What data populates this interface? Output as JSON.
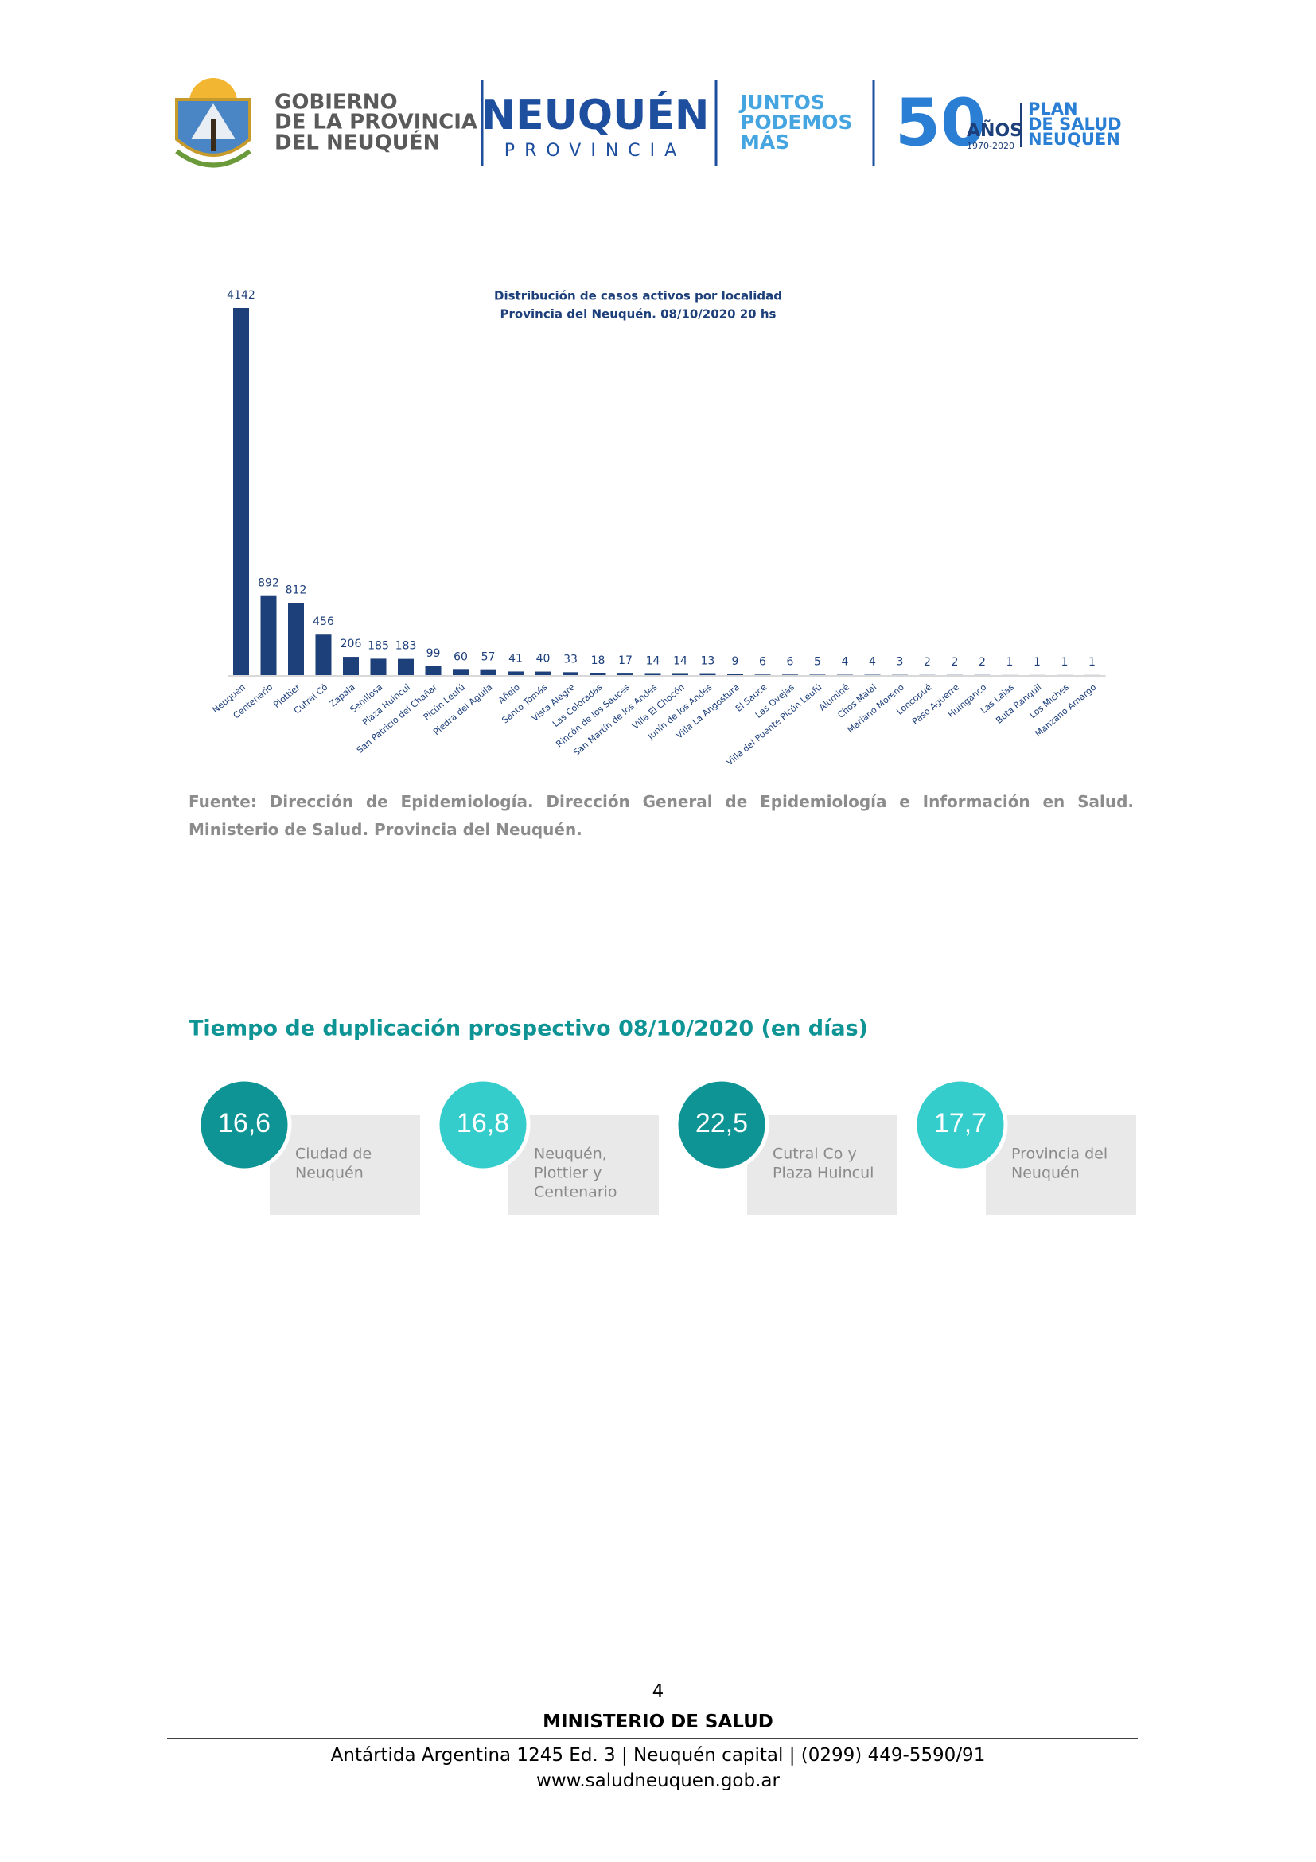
{
  "header": {
    "gov": [
      "GOBIERNO",
      "DE LA PROVINCIA",
      "DEL NEUQUÉN"
    ],
    "brand": "NEUQUÉN",
    "brand_sub": "PROVINCIA",
    "slogan": [
      "JUNTOS",
      "PODEMOS",
      "MÁS"
    ],
    "anniv": "50",
    "anniv_word": "AÑOS",
    "anniv_years": "1970-2020",
    "plan": [
      "PLAN",
      "DE SALUD",
      "NEUQUÉN"
    ]
  },
  "chart_data": {
    "type": "bar",
    "title": [
      "Distribución de casos activos por localidad",
      "Provincia del Neuquén.  08/10/2020 20 hs"
    ],
    "color": "#1d3f7a",
    "categories": [
      "Neuquén",
      "Centenario",
      "Plottier",
      "Cutral Có",
      "Zapala",
      "Senillosa",
      "Plaza Huincul",
      "San Patricio del Chañar",
      "Picún Leufú",
      "Piedra del Aguila",
      "Añelo",
      "Santo Tomás",
      "Vista Alegre",
      "Las Coloradas",
      "Rincón de los Sauces",
      "San Martín de los Andes",
      "Villa El Chocón",
      "Junín de los Andes",
      "Villa La Angostura",
      "El Sauce",
      "Las Ovejas",
      "Villa del Puente Picún Leufú",
      "Aluminé",
      "Chos Malal",
      "Mariano Moreno",
      "Loncopué",
      "Paso Aguerre",
      "Huinganco",
      "Las Lajas",
      "Buta Ranquil",
      "Los Miches",
      "Manzano Amargo"
    ],
    "values": [
      4142,
      892,
      812,
      456,
      206,
      185,
      183,
      99,
      60,
      57,
      41,
      40,
      33,
      18,
      17,
      14,
      14,
      13,
      9,
      6,
      6,
      5,
      4,
      4,
      3,
      2,
      2,
      2,
      1,
      1,
      1,
      1
    ]
  },
  "source": "Fuente: Dirección de Epidemiología. Dirección General de Epidemiología e Información en Salud. Ministerio de Salud. Provincia del Neuquén.",
  "section_title": "Tiempo de duplicación prospectivo 08/10/2020 (en días)",
  "cards": [
    {
      "value": "16,6",
      "label": [
        "Ciudad de",
        "Neuquén"
      ],
      "color": "#0e9494"
    },
    {
      "value": "16,8",
      "label": [
        "Neuquén,",
        "Plottier y",
        "Centenario"
      ],
      "color": "#35cccc"
    },
    {
      "value": "22,5",
      "label": [
        "Cutral Co y",
        "Plaza Huincul"
      ],
      "color": "#0e9494"
    },
    {
      "value": "17,7",
      "label": [
        "Provincia del",
        "Neuquén"
      ],
      "color": "#35cccc"
    }
  ],
  "footer": {
    "page": "4",
    "ministry": "MINISTERIO DE SALUD",
    "address": "Antártida Argentina 1245 Ed. 3 | Neuquén capital | (0299) 449-5590/91",
    "url": "www.saludneuquen.gob.ar"
  }
}
